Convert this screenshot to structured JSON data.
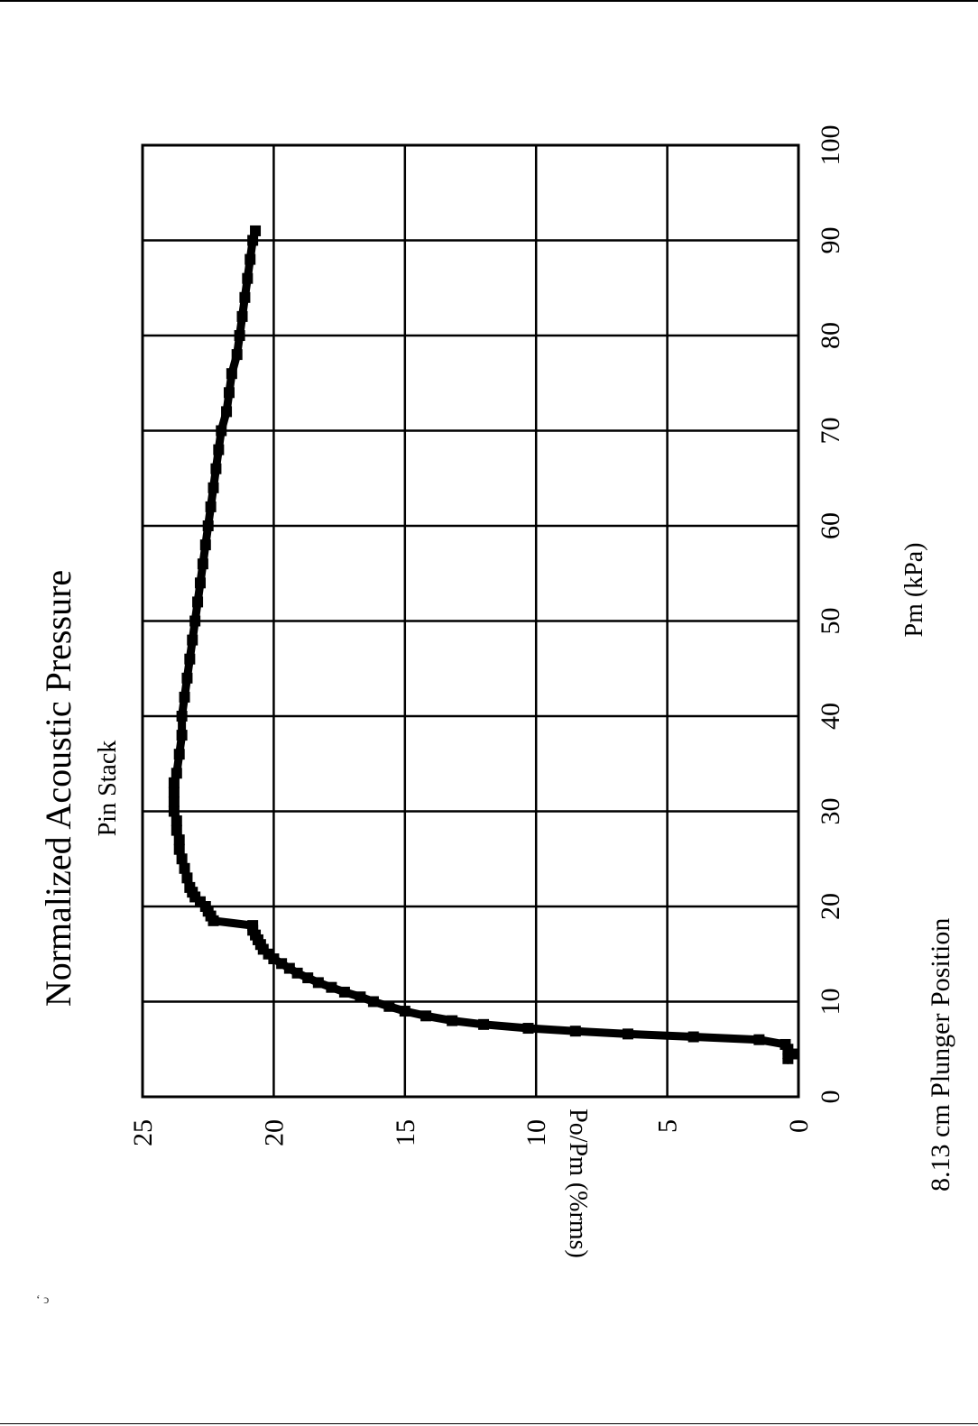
{
  "chart_data": {
    "type": "scatter",
    "title": "Normalized Acoustic Pressure",
    "subtitle": "Pin Stack",
    "xlabel": "Pm (kPa)",
    "ylabel": "Po/Pm (%rms)",
    "footer": "8.13 cm  Plunger Position",
    "xlim": [
      0,
      100
    ],
    "ylim": [
      0,
      25
    ],
    "xticks": [
      "0",
      "10",
      "20",
      "30",
      "40",
      "50",
      "60",
      "70",
      "80",
      "90",
      "100"
    ],
    "yticks": [
      "0",
      "5",
      "10",
      "15",
      "20",
      "25"
    ],
    "grid": true,
    "rotation": "page rotated 90 degrees counter-clockwise",
    "series": [
      {
        "x": [
          4.0,
          4.5,
          5.0,
          5.5,
          6.0,
          6.3,
          6.6,
          6.9,
          7.2,
          7.6,
          8.0,
          8.5,
          9.0,
          9.5,
          10.0,
          10.5,
          11.0,
          11.5,
          12.0,
          12.5,
          13.0,
          13.5,
          14.0,
          14.5,
          15.0,
          15.5,
          16.0,
          16.5,
          17.0,
          17.5,
          18.0,
          18.5,
          19.0,
          19.5,
          20.0,
          20.5,
          21.0,
          21.5,
          22.0,
          23.0,
          24.0,
          25.0,
          26.0,
          27.0,
          28.0,
          29.0,
          30.0,
          31.0,
          32.0,
          33.0,
          34.0,
          36.0,
          38.0,
          40.0,
          42.0,
          44.0,
          46.0,
          48.0,
          50.0,
          52.0,
          54.0,
          56.0,
          58.0,
          60.0,
          62.0,
          64.0,
          66.0,
          68.0,
          70.0,
          72.0,
          74.0,
          76.0,
          78.0,
          80.0,
          82.0,
          84.0,
          86.0,
          88.0,
          90.0,
          91.0
        ],
        "y": [
          0.4,
          0.2,
          0.4,
          0.5,
          1.5,
          4.0,
          6.5,
          8.5,
          10.3,
          12.0,
          13.2,
          14.2,
          15.0,
          15.6,
          16.2,
          16.7,
          17.3,
          17.8,
          18.3,
          18.7,
          19.1,
          19.4,
          19.7,
          20.0,
          20.2,
          20.4,
          20.5,
          20.6,
          20.7,
          20.8,
          20.8,
          22.3,
          22.4,
          22.5,
          22.6,
          22.8,
          23.0,
          23.1,
          23.2,
          23.3,
          23.4,
          23.5,
          23.6,
          23.6,
          23.7,
          23.7,
          23.8,
          23.8,
          23.8,
          23.8,
          23.7,
          23.6,
          23.5,
          23.5,
          23.4,
          23.3,
          23.2,
          23.1,
          23.0,
          22.9,
          22.8,
          22.7,
          22.6,
          22.5,
          22.4,
          22.3,
          22.2,
          22.1,
          22.0,
          21.8,
          21.7,
          21.6,
          21.4,
          21.3,
          21.2,
          21.1,
          21.0,
          20.9,
          20.8,
          20.7
        ]
      }
    ]
  },
  "page": {
    "corner_mark": "ʻ ͻ"
  }
}
